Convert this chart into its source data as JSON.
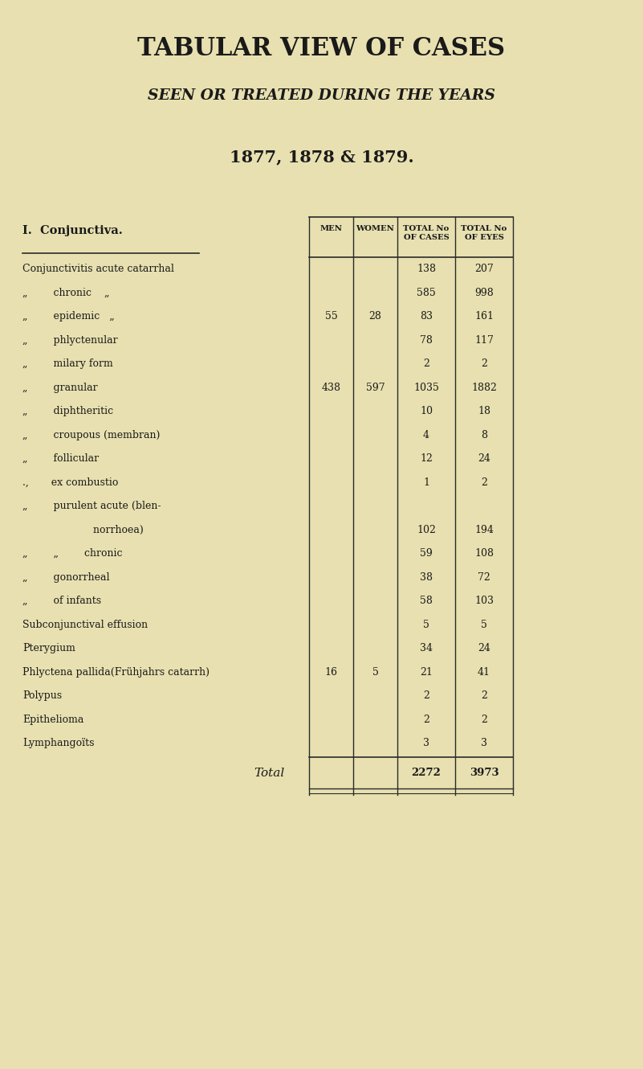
{
  "title": "TABULAR VIEW OF CASES",
  "subtitle": "SEEN OR TREATED DURING THE YEARS",
  "years": "1877, 1878 & 1879.",
  "section_header": "I.  Conjunctiva.",
  "col_headers": [
    "MEN",
    "WOMEN",
    "TOTAL No\nOF CASES",
    "TOTAL No\nOF EYES"
  ],
  "rows": [
    {
      "label": "Conjunctivitis acute catarrhal",
      "indent": 0,
      "men": "",
      "women": "",
      "cases": "138",
      "eyes": "207"
    },
    {
      "label": "„        chronic    „",
      "indent": 1,
      "men": "",
      "women": "",
      "cases": "585",
      "eyes": "998"
    },
    {
      "label": "„        epidemic   „",
      "indent": 1,
      "men": "55",
      "women": "28",
      "cases": "83",
      "eyes": "161"
    },
    {
      "label": "„        phlyctenular",
      "indent": 1,
      "men": "",
      "women": "",
      "cases": "78",
      "eyes": "117"
    },
    {
      "label": "„        milary form",
      "indent": 1,
      "men": "",
      "women": "",
      "cases": "2",
      "eyes": "2"
    },
    {
      "label": "„        granular",
      "indent": 1,
      "men": "438",
      "women": "597",
      "cases": "1035",
      "eyes": "1882"
    },
    {
      "label": "„        diphtheritic",
      "indent": 1,
      "men": "",
      "women": "",
      "cases": "10",
      "eyes": "18"
    },
    {
      "label": "„        croupous (membran)",
      "indent": 1,
      "men": "",
      "women": "",
      "cases": "4",
      "eyes": "8"
    },
    {
      "label": "„        follicular",
      "indent": 1,
      "men": "",
      "women": "",
      "cases": "12",
      "eyes": "24"
    },
    {
      "label": ".,       ex combustio",
      "indent": 1,
      "men": "",
      "women": "",
      "cases": "1",
      "eyes": "2"
    },
    {
      "label": "„        purulent acute (blen-",
      "indent": 1,
      "men": "",
      "women": "",
      "cases": "",
      "eyes": ""
    },
    {
      "label": "                      norrhoea)",
      "indent": 2,
      "men": "",
      "women": "",
      "cases": "102",
      "eyes": "194"
    },
    {
      "label": "„        „        chronic",
      "indent": 1,
      "men": "",
      "women": "",
      "cases": "59",
      "eyes": "108"
    },
    {
      "label": "„        gonorrheal",
      "indent": 1,
      "men": "",
      "women": "",
      "cases": "38",
      "eyes": "72"
    },
    {
      "label": "„        of infants",
      "indent": 1,
      "men": "",
      "women": "",
      "cases": "58",
      "eyes": "103"
    },
    {
      "label": "Subconjunctival effusion",
      "indent": 0,
      "men": "",
      "women": "",
      "cases": "5",
      "eyes": "5"
    },
    {
      "label": "Pterygium",
      "indent": 0,
      "men": "",
      "women": "",
      "cases": "34",
      "eyes": "24"
    },
    {
      "label": "Phlyctena pallida(Frühjahrs catarrh)",
      "indent": 0,
      "men": "16",
      "women": "5",
      "cases": "21",
      "eyes": "41"
    },
    {
      "label": "Polypus",
      "indent": 0,
      "men": "",
      "women": "",
      "cases": "2",
      "eyes": "2"
    },
    {
      "label": "Epithelioma",
      "indent": 0,
      "men": "",
      "women": "",
      "cases": "2",
      "eyes": "2"
    },
    {
      "label": "Lymphangoïts",
      "indent": 0,
      "men": "",
      "women": "",
      "cases": "3",
      "eyes": "3"
    }
  ],
  "total_label": "Total",
  "total_cases": "2272",
  "total_eyes": "3973",
  "bg_color": "#e8e0b0",
  "text_color": "#1a1a1a",
  "line_color": "#2a2a2a"
}
